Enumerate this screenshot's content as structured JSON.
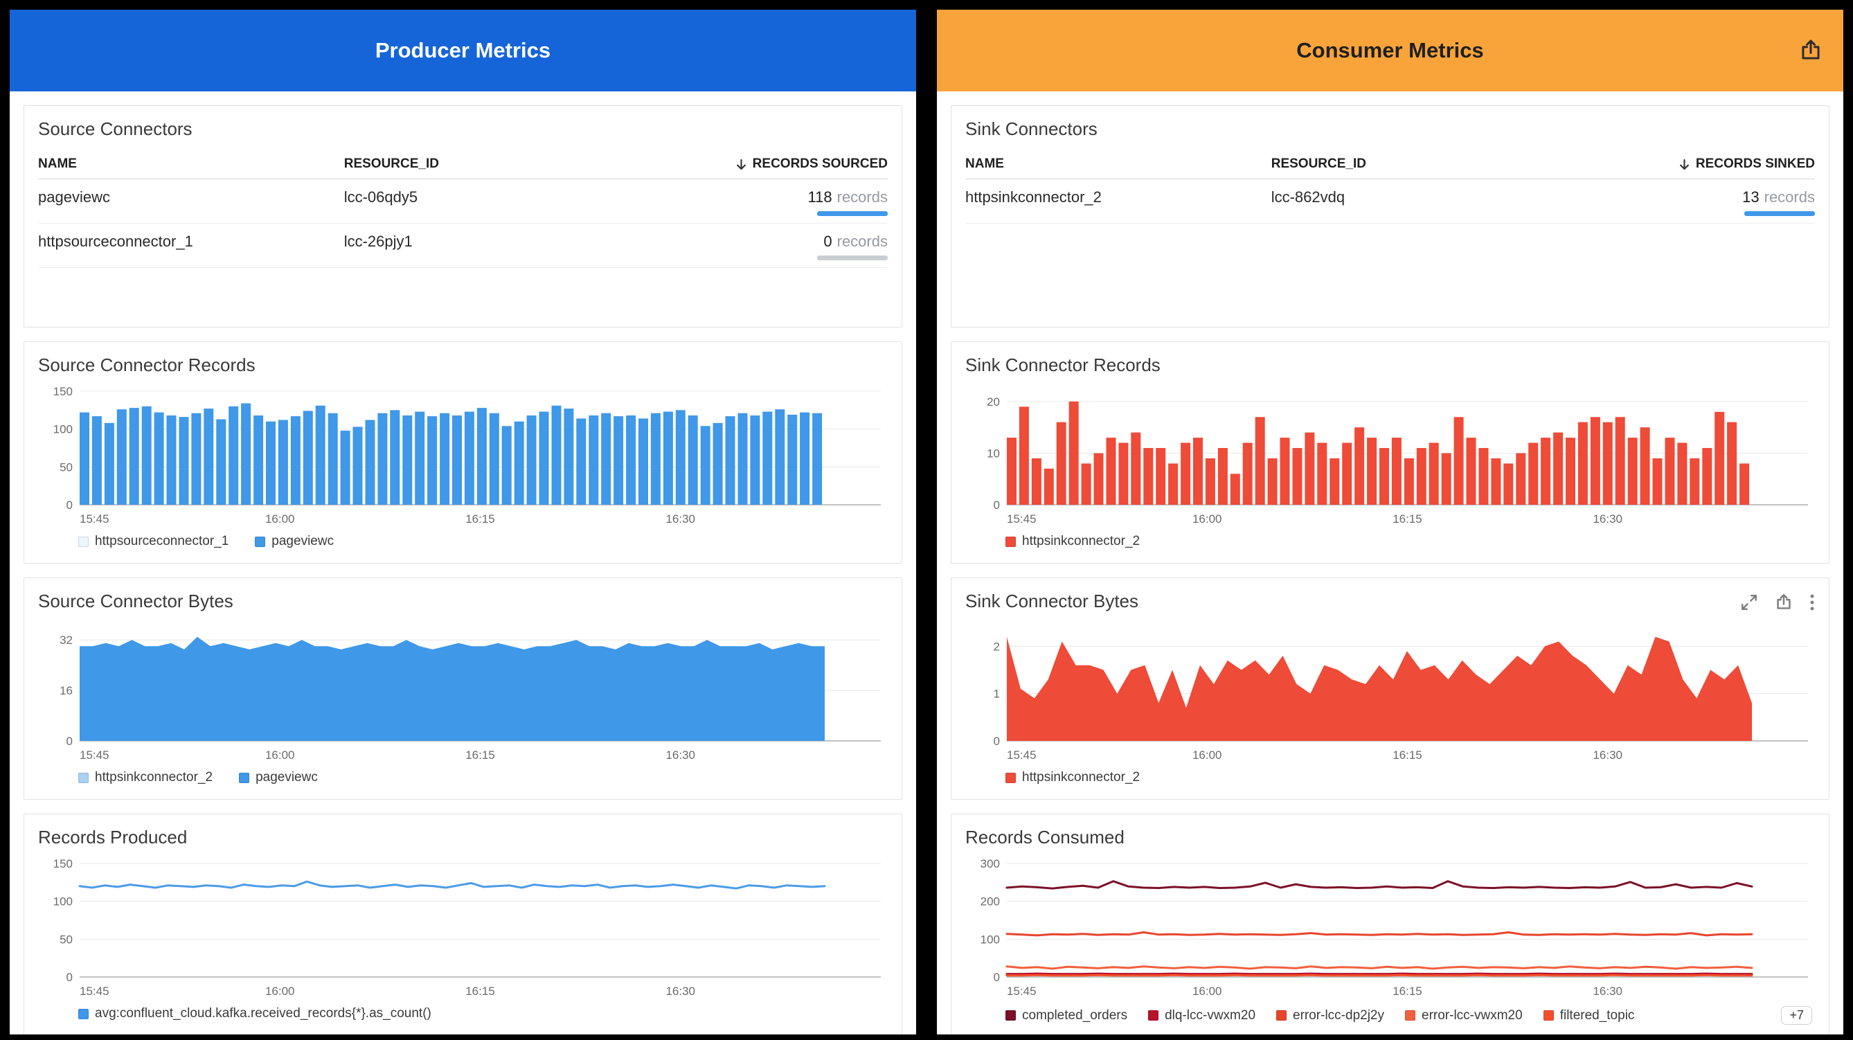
{
  "producer": {
    "title": "Producer Metrics",
    "accent": "#1565d9",
    "table": {
      "title": "Source Connectors",
      "columns": [
        "NAME",
        "RESOURCE_ID",
        "RECORDS SOURCED"
      ],
      "rows": [
        {
          "name": "pageviewc",
          "resource_id": "lcc-06qdy5",
          "count": "118",
          "unit": "records",
          "bar_color": "#3f98e8"
        },
        {
          "name": "httpsourceconnector_1",
          "resource_id": "lcc-26pjy1",
          "count": "0",
          "unit": "records",
          "bar_color": "#c9ced4"
        }
      ]
    },
    "panels": {
      "records_title": "Source Connector Records",
      "bytes_title": "Source Connector Bytes",
      "produced_title": "Records Produced"
    }
  },
  "consumer": {
    "title": "Consumer Metrics",
    "accent": "#f9a43a",
    "table": {
      "title": "Sink Connectors",
      "columns": [
        "NAME",
        "RESOURCE_ID",
        "RECORDS SINKED"
      ],
      "rows": [
        {
          "name": "httpsinkconnector_2",
          "resource_id": "lcc-862vdq",
          "count": "13",
          "unit": "records",
          "bar_color": "#3f98e8"
        }
      ]
    },
    "panels": {
      "records_title": "Sink Connector Records",
      "bytes_title": "Sink Connector Bytes",
      "consumed_title": "Records Consumed"
    }
  },
  "charts": {
    "source_records": {
      "type": "bar",
      "color": "#3f98e8",
      "ylim": [
        0,
        150
      ],
      "yticks": [
        0,
        50,
        100,
        150
      ],
      "xticks": [
        "15:45",
        "16:00",
        "16:15",
        "16:30"
      ],
      "xfracs": [
        0,
        0.25,
        0.5,
        0.75
      ],
      "span": 0.93,
      "values": [
        122,
        117,
        108,
        126,
        128,
        130,
        122,
        118,
        116,
        121,
        127,
        113,
        130,
        134,
        118,
        110,
        112,
        117,
        124,
        131,
        121,
        98,
        103,
        112,
        121,
        125,
        118,
        123,
        117,
        121,
        118,
        123,
        128,
        121,
        104,
        110,
        118,
        123,
        131,
        127,
        114,
        118,
        121,
        117,
        118,
        114,
        121,
        123,
        125,
        118,
        104,
        108,
        117,
        121,
        118,
        123,
        126,
        119,
        122,
        121
      ],
      "legend": [
        {
          "label": "httpsourceconnector_1",
          "color": "#edf5fd"
        },
        {
          "label": "pageviewc",
          "color": "#3f98e8"
        }
      ]
    },
    "source_bytes": {
      "type": "area",
      "color": "#3f98e8",
      "ylim": [
        0,
        36
      ],
      "yticks": [
        0,
        16,
        32
      ],
      "xticks": [
        "15:45",
        "16:00",
        "16:15",
        "16:30"
      ],
      "xfracs": [
        0,
        0.25,
        0.5,
        0.75
      ],
      "span": 0.93,
      "values": [
        30,
        30,
        31,
        30,
        32,
        30,
        30,
        31,
        29,
        33,
        30,
        31,
        30,
        29,
        30,
        31,
        30,
        32,
        30,
        30,
        29,
        30,
        31,
        30,
        30,
        32,
        30,
        29,
        30,
        31,
        30,
        30,
        31,
        30,
        29,
        30,
        30,
        31,
        32,
        30,
        30,
        29,
        31,
        30,
        30,
        31,
        30,
        30,
        32,
        30,
        30,
        30,
        31,
        29,
        30,
        31,
        30,
        30
      ],
      "legend": [
        {
          "label": "httpsinkconnector_2",
          "color": "#a9d1f1"
        },
        {
          "label": "pageviewc",
          "color": "#3f98e8"
        }
      ]
    },
    "records_produced": {
      "type": "line",
      "color": "#4a9ce8",
      "ylim": [
        0,
        150
      ],
      "yticks": [
        0,
        50,
        100,
        150
      ],
      "xticks": [
        "15:45",
        "16:00",
        "16:15",
        "16:30"
      ],
      "xfracs": [
        0,
        0.25,
        0.5,
        0.75
      ],
      "span": 0.93,
      "values": [
        120,
        118,
        121,
        119,
        122,
        120,
        118,
        121,
        120,
        119,
        121,
        120,
        118,
        122,
        120,
        119,
        121,
        120,
        126,
        121,
        119,
        120,
        121,
        118,
        120,
        122,
        119,
        121,
        120,
        118,
        121,
        124,
        119,
        120,
        121,
        118,
        122,
        120,
        119,
        121,
        120,
        122,
        118,
        120,
        121,
        119,
        120,
        122,
        120,
        118,
        121,
        119,
        117,
        121,
        120,
        118,
        121,
        120,
        119,
        120
      ],
      "legend": [
        {
          "label": "avg:confluent_cloud.kafka.received_records{*}.as_count()",
          "color": "#3f98e8"
        }
      ]
    },
    "sink_records": {
      "type": "bar",
      "color": "#ee4b38",
      "ylim": [
        0,
        22
      ],
      "yticks": [
        0,
        10,
        20
      ],
      "xticks": [
        "15:45",
        "16:00",
        "16:15",
        "16:30"
      ],
      "xfracs": [
        0,
        0.25,
        0.5,
        0.75
      ],
      "span": 0.93,
      "values": [
        13,
        19,
        9,
        7,
        16,
        20,
        8,
        10,
        13,
        12,
        14,
        11,
        11,
        8,
        12,
        13,
        9,
        11,
        6,
        12,
        17,
        9,
        13,
        11,
        14,
        12,
        9,
        12,
        15,
        13,
        11,
        13,
        9,
        11,
        12,
        10,
        17,
        13,
        11,
        9,
        8,
        10,
        12,
        13,
        14,
        13,
        16,
        17,
        16,
        17,
        13,
        15,
        9,
        13,
        12,
        9,
        11,
        18,
        16,
        8
      ],
      "legend": [
        {
          "label": "httpsinkconnector_2",
          "color": "#ee4b38"
        }
      ]
    },
    "sink_bytes": {
      "type": "area",
      "color": "#ee4b38",
      "ylim": [
        0,
        2.4
      ],
      "yticks": [
        0,
        1,
        2
      ],
      "xticks": [
        "15:45",
        "16:00",
        "16:15",
        "16:30"
      ],
      "xfracs": [
        0,
        0.25,
        0.5,
        0.75
      ],
      "span": 0.93,
      "values": [
        2.2,
        1.1,
        0.9,
        1.3,
        2.1,
        1.6,
        1.6,
        1.5,
        1.0,
        1.5,
        1.6,
        0.8,
        1.5,
        0.7,
        1.6,
        1.2,
        1.7,
        1.5,
        1.7,
        1.4,
        1.8,
        1.2,
        1.0,
        1.6,
        1.5,
        1.3,
        1.2,
        1.6,
        1.3,
        1.9,
        1.5,
        1.6,
        1.3,
        1.7,
        1.4,
        1.2,
        1.5,
        1.8,
        1.6,
        2.0,
        2.1,
        1.8,
        1.6,
        1.3,
        1.0,
        1.6,
        1.4,
        2.2,
        2.1,
        1.3,
        0.9,
        1.5,
        1.3,
        1.6,
        0.8
      ],
      "legend": [
        {
          "label": "httpsinkconnector_2",
          "color": "#ee4b38"
        }
      ]
    },
    "records_consumed": {
      "type": "multiline",
      "ylim": [
        0,
        300
      ],
      "yticks": [
        0,
        100,
        200,
        300
      ],
      "xticks": [
        "15:45",
        "16:00",
        "16:15",
        "16:30"
      ],
      "xfracs": [
        0,
        0.25,
        0.5,
        0.75
      ],
      "span": 0.93,
      "series": [
        {
          "name": "completed_orders",
          "color": "#7b1027",
          "values": [
            236,
            239,
            237,
            234,
            238,
            241,
            236,
            253,
            239,
            236,
            235,
            238,
            236,
            238,
            235,
            236,
            239,
            249,
            236,
            245,
            238,
            236,
            237,
            235,
            236,
            239,
            236,
            237,
            235,
            253,
            239,
            236,
            235,
            237,
            236,
            238,
            236,
            235,
            237,
            236,
            239,
            251,
            236,
            237,
            245,
            236,
            238,
            236,
            248,
            239
          ]
        },
        {
          "name": "dlq-lcc-vwxm20",
          "color": "#b5122e",
          "values": [
            8,
            8,
            9,
            8,
            8,
            8,
            9,
            8,
            8,
            8,
            8,
            9,
            8,
            8,
            8,
            9,
            8,
            8,
            8,
            8,
            9,
            8,
            8,
            8,
            8,
            8,
            9,
            8,
            8,
            8,
            8,
            9,
            8,
            8,
            8,
            9,
            8,
            8,
            8,
            8,
            9,
            8,
            8,
            8,
            8,
            8,
            9,
            8,
            8,
            8
          ]
        },
        {
          "name": "error-lcc-dp2j2y",
          "color": "#e8442c",
          "values": [
            114,
            112,
            110,
            113,
            112,
            114,
            111,
            113,
            112,
            118,
            112,
            113,
            111,
            112,
            114,
            112,
            113,
            112,
            111,
            113,
            116,
            112,
            113,
            112,
            111,
            113,
            112,
            114,
            112,
            113,
            111,
            112,
            113,
            118,
            112,
            111,
            113,
            112,
            113,
            112,
            114,
            112,
            111,
            113,
            112,
            116,
            110,
            113,
            112,
            113
          ]
        },
        {
          "name": "error-lcc-vwxm20",
          "color": "#f1603f",
          "values": [
            28,
            24,
            26,
            22,
            27,
            25,
            23,
            26,
            24,
            28,
            25,
            23,
            26,
            24,
            27,
            25,
            22,
            26,
            25,
            23,
            28,
            24,
            26,
            25,
            23,
            27,
            24,
            26,
            22,
            25,
            27,
            24,
            26,
            25,
            23,
            26,
            24,
            28,
            25,
            23,
            26,
            24,
            27,
            25,
            22,
            26,
            24,
            25,
            27,
            24
          ]
        },
        {
          "name": "filtered_topic",
          "color": "#f4502a",
          "values": [
            4,
            4,
            5,
            4,
            4,
            4,
            5,
            4,
            4,
            4,
            4,
            5,
            4,
            4,
            4,
            5,
            4,
            4,
            4,
            4,
            5,
            4,
            4,
            4,
            4,
            4,
            5,
            4,
            4,
            4,
            4,
            5,
            4,
            4,
            4,
            5,
            4,
            4,
            4,
            4,
            5,
            4,
            4,
            4,
            4,
            4,
            5,
            4,
            4,
            4
          ]
        }
      ],
      "legend_more": "+7"
    }
  }
}
